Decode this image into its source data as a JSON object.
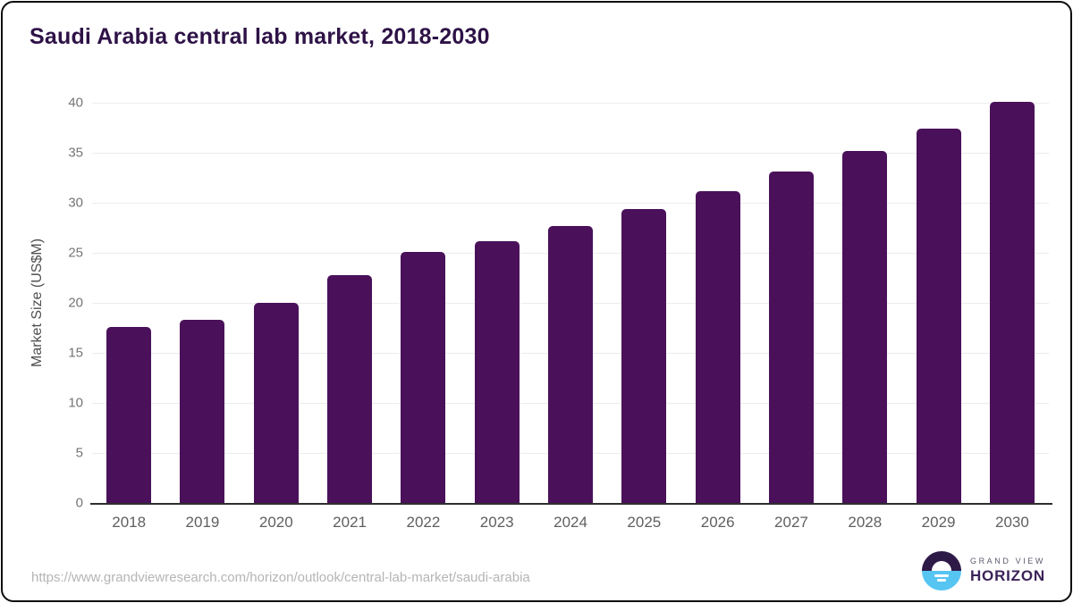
{
  "title": "Saudi Arabia central lab market, 2018-2030",
  "colors": {
    "title": "#2e1247",
    "bar": "#4a115a",
    "gridline": "#ececf0",
    "axis_line": "#2e2e2e",
    "tick_label": "#5f5f5f",
    "frame_border": "#0d0d0d"
  },
  "chart_data": {
    "type": "bar",
    "title": "Saudi Arabia central lab market, 2018-2030",
    "categories": [
      "2018",
      "2019",
      "2020",
      "2021",
      "2022",
      "2023",
      "2024",
      "2025",
      "2026",
      "2027",
      "2028",
      "2029",
      "2030"
    ],
    "values": [
      17.6,
      18.3,
      20.0,
      22.8,
      25.1,
      26.2,
      27.7,
      29.4,
      31.2,
      33.1,
      35.2,
      37.4,
      40.1
    ],
    "xlabel": "",
    "ylabel": "Market Size (US$M)",
    "ylim": [
      0,
      40
    ],
    "yticks": [
      0,
      5,
      10,
      15,
      20,
      25,
      30,
      35,
      40
    ],
    "grid": true,
    "legend": "none",
    "bar_color": "#4a115a"
  },
  "footer": {
    "source_url": "https://www.grandviewresearch.com/horizon/outlook/central-lab-market/saudi-arabia",
    "logo": {
      "line1": "GRAND VIEW",
      "line2": "HORIZON",
      "mark_top_color": "#2e1a47",
      "mark_bottom_color": "#56c5f2",
      "line1_color": "#5c5c6e",
      "line2_color": "#3a2258"
    }
  }
}
